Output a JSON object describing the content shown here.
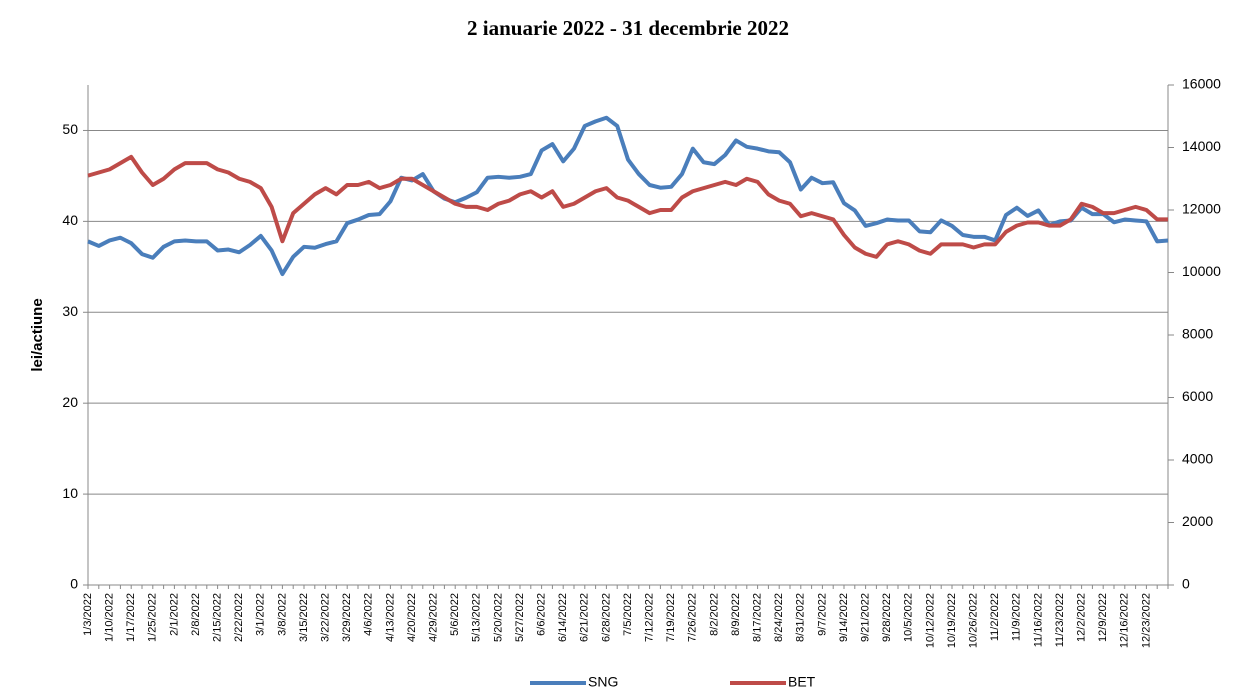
{
  "chart_data": {
    "type": "line",
    "title": "2 ianuarie 2022 - 31 decembrie 2022",
    "y_label": "lei/actiune",
    "categories": [
      "1/3/2022",
      null,
      "1/10/2022",
      null,
      "1/17/2022",
      null,
      "1/25/2022",
      null,
      "2/1/2022",
      null,
      "2/8/2022",
      null,
      "2/15/2022",
      null,
      "2/22/2022",
      null,
      "3/1/2022",
      null,
      "3/8/2022",
      null,
      "3/15/2022",
      null,
      "3/22/2022",
      null,
      "3/29/2022",
      null,
      "4/6/2022",
      null,
      "4/13/2022",
      null,
      "4/20/2022",
      null,
      "4/29/2022",
      null,
      "5/6/2022",
      null,
      "5/13/2022",
      null,
      "5/20/2022",
      null,
      "5/27/2022",
      null,
      "6/6/2022",
      null,
      "6/14/2022",
      null,
      "6/21/2022",
      null,
      "6/28/2022",
      null,
      "7/5/2022",
      null,
      "7/12/2022",
      null,
      "7/19/2022",
      null,
      "7/26/2022",
      null,
      "8/2/2022",
      null,
      "8/9/2022",
      null,
      "8/17/2022",
      null,
      "8/24/2022",
      null,
      "8/31/2022",
      null,
      "9/7/2022",
      null,
      "9/14/2022",
      null,
      "9/21/2022",
      null,
      "9/28/2022",
      null,
      "10/5/2022",
      null,
      "10/12/2022",
      null,
      "10/19/2022",
      null,
      "10/26/2022",
      null,
      "11/2/2022",
      null,
      "11/9/2022",
      null,
      "11/16/2022",
      null,
      "11/23/2022",
      null,
      "12/2/2022",
      null,
      "12/9/2022",
      null,
      "12/16/2022",
      null,
      "12/23/2022",
      null,
      null
    ],
    "series": [
      {
        "name": "SNG",
        "color": "#4a7ebb",
        "axis": "y",
        "values": [
          37.8,
          37.3,
          37.9,
          38.2,
          37.6,
          36.4,
          36.0,
          37.2,
          37.8,
          37.9,
          37.8,
          37.8,
          36.8,
          36.9,
          36.6,
          37.4,
          38.4,
          36.8,
          34.2,
          36.1,
          37.2,
          37.1,
          37.5,
          37.8,
          39.8,
          40.2,
          40.7,
          40.8,
          42.2,
          44.8,
          44.5,
          45.2,
          43.3,
          42.5,
          42.1,
          42.6,
          43.2,
          44.8,
          44.9,
          44.8,
          44.9,
          45.2,
          47.8,
          48.5,
          46.6,
          48.0,
          50.5,
          51.0,
          51.4,
          50.5,
          46.8,
          45.2,
          44.0,
          43.7,
          43.8,
          45.2,
          48.0,
          46.5,
          46.3,
          47.3,
          48.9,
          48.2,
          48.0,
          47.7,
          47.6,
          46.5,
          43.5,
          44.8,
          44.2,
          44.3,
          42.0,
          41.2,
          39.5,
          39.8,
          40.2,
          40.1,
          40.1,
          38.9,
          38.8,
          40.1,
          39.5,
          38.5,
          38.3,
          38.3,
          37.9,
          40.7,
          41.5,
          40.6,
          41.2,
          39.6,
          40.0,
          40.1,
          41.5,
          40.8,
          40.8,
          39.9,
          40.2,
          40.1,
          40.0,
          37.8,
          37.9
        ]
      },
      {
        "name": "BET",
        "color": "#be4b48",
        "axis": "y2",
        "values": [
          13100,
          13200,
          13300,
          13500,
          13700,
          13200,
          12800,
          13000,
          13300,
          13500,
          13500,
          13500,
          13300,
          13200,
          13000,
          12900,
          12700,
          12100,
          11000,
          11900,
          12200,
          12500,
          12700,
          12500,
          12800,
          12800,
          12900,
          12700,
          12800,
          13000,
          13000,
          12800,
          12600,
          12400,
          12200,
          12100,
          12100,
          12000,
          12200,
          12300,
          12500,
          12600,
          12400,
          12600,
          12100,
          12200,
          12400,
          12600,
          12700,
          12400,
          12300,
          12100,
          11900,
          12000,
          12000,
          12400,
          12600,
          12700,
          12800,
          12900,
          12800,
          13000,
          12900,
          12500,
          12300,
          12200,
          11800,
          11900,
          11800,
          11700,
          11200,
          10800,
          10600,
          10500,
          10900,
          11000,
          10900,
          10700,
          10600,
          10900,
          10900,
          10900,
          10800,
          10900,
          10900,
          11300,
          11500,
          11600,
          11600,
          11500,
          11500,
          11700,
          12200,
          12100,
          11900,
          11900,
          12000,
          12100,
          12000,
          11700,
          11700
        ]
      }
    ],
    "ylim": [
      0,
      55
    ],
    "yticks": [
      0,
      10,
      20,
      30,
      40,
      50
    ],
    "y2lim": [
      0,
      16000
    ],
    "y2ticks": [
      0,
      2000,
      4000,
      6000,
      8000,
      10000,
      12000,
      14000,
      16000
    ],
    "grid": true,
    "legend": "bottom"
  }
}
